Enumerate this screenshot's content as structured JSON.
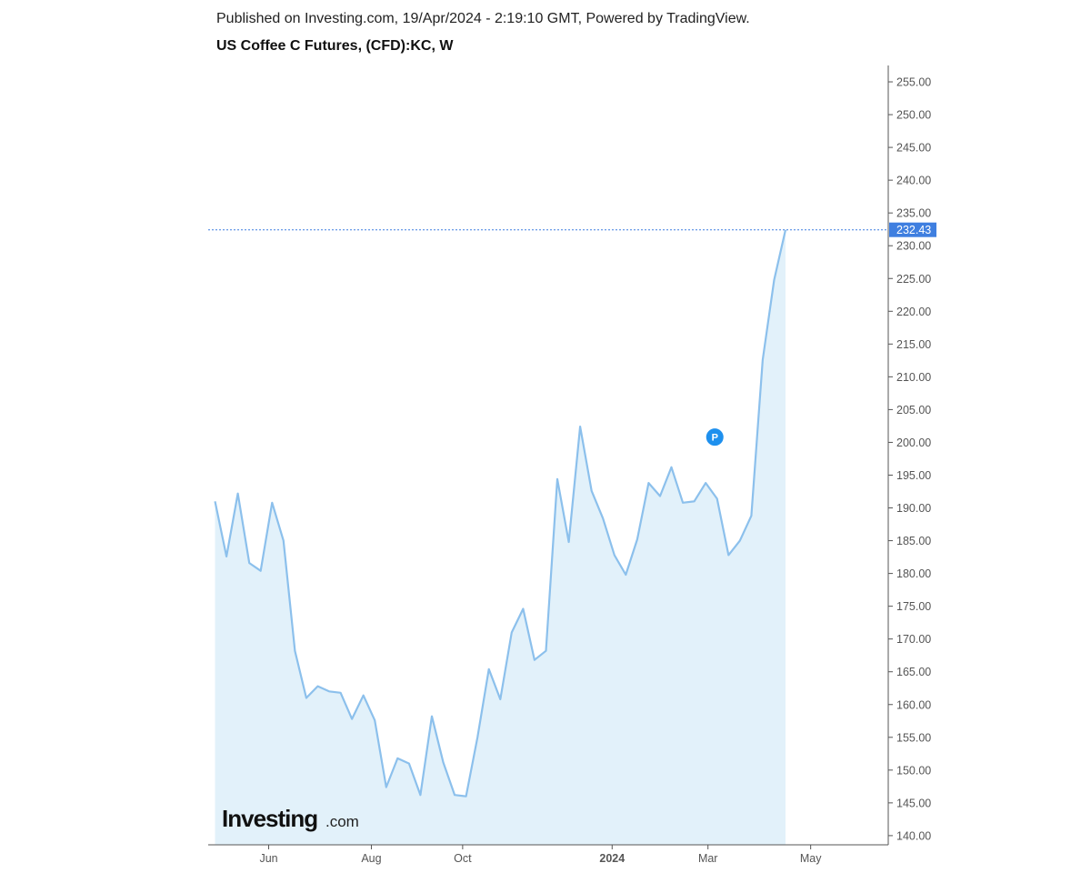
{
  "header": {
    "published": "Published on Investing.com, 19/Apr/2024 - 2:19:10 GMT, Powered by TradingView.",
    "title": "US Coffee C Futures, (CFD):KC, W"
  },
  "logo": {
    "main": "Investing",
    "suffix": ".com"
  },
  "colors": {
    "line": "#8cc0ec",
    "area": "#e2f1fa",
    "price_tag": "#3f7fe0",
    "marker": "#1e90ee",
    "axis": "#555555"
  },
  "chart_data": {
    "type": "area",
    "title": "US Coffee C Futures, (CFD):KC, W",
    "xlabel": "",
    "ylabel": "",
    "x_ticks": [
      {
        "label": "Jun",
        "index": 4.7
      },
      {
        "label": "Aug",
        "index": 13.7
      },
      {
        "label": "Oct",
        "index": 21.7
      },
      {
        "label": "2024",
        "index": 34.8
      },
      {
        "label": "Mar",
        "index": 43.2
      },
      {
        "label": "May",
        "index": 52.2
      }
    ],
    "x_range": [
      -0.6,
      59
    ],
    "y_ticks": [
      "255.00",
      "250.00",
      "245.00",
      "240.00",
      "235.00",
      "230.00",
      "225.00",
      "220.00",
      "215.00",
      "210.00",
      "205.00",
      "200.00",
      "195.00",
      "190.00",
      "185.00",
      "180.00",
      "175.00",
      "170.00",
      "165.00",
      "160.00",
      "155.00",
      "150.00",
      "145.00",
      "140.00"
    ],
    "ylim": [
      138.6,
      257.5
    ],
    "series": [
      {
        "values": [
          191.0,
          182.6,
          192.2,
          181.6,
          180.4,
          190.8,
          185.0,
          168.2,
          161.0,
          162.8,
          162.0,
          161.8,
          157.8,
          161.4,
          157.6,
          147.4,
          151.8,
          151.0,
          146.2,
          158.2,
          151.2,
          146.2,
          146.0,
          155.0,
          165.4,
          160.8,
          171.0,
          174.6,
          166.8,
          168.2,
          194.4,
          184.8,
          202.4,
          192.6,
          188.4,
          182.8,
          179.8,
          185.2,
          193.8,
          191.8,
          196.2,
          190.8,
          191.0,
          193.8,
          191.4,
          182.8,
          185.0,
          188.8,
          212.6,
          224.8,
          232.43
        ]
      }
    ],
    "last_price": "232.43",
    "marker": {
      "label": "P",
      "index": 43.8,
      "y": 200.8
    },
    "grid": false,
    "legend": "none"
  }
}
